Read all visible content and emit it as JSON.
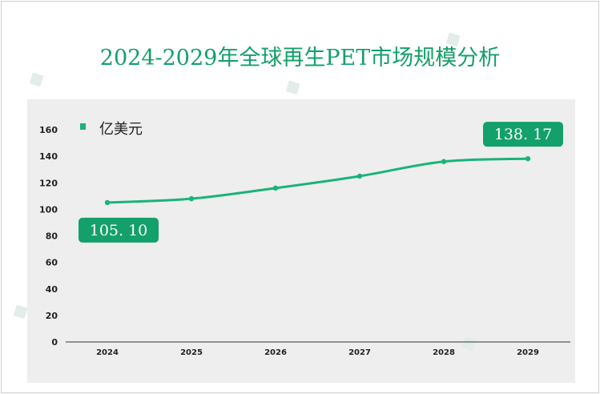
{
  "colors": {
    "accent": "#13a06a",
    "line": "#1ab37a",
    "plot_bg": "#eeeeee",
    "axis": "#333333"
  },
  "chart_data": {
    "type": "line",
    "title": "2024-2029年全球再生PET市场规模分析",
    "xlabel": "",
    "ylabel": "",
    "categories": [
      "2024",
      "2025",
      "2026",
      "2027",
      "2028",
      "2029"
    ],
    "series": [
      {
        "name": "亿美元",
        "values": [
          105.1,
          108.0,
          116.0,
          125.0,
          136.0,
          138.17
        ]
      }
    ],
    "ylim": [
      0,
      160
    ],
    "yticks": [
      0,
      20,
      40,
      60,
      80,
      100,
      120,
      140,
      160
    ],
    "legend": "top-left",
    "annotations": [
      {
        "category": "2024",
        "text": "105. 10"
      },
      {
        "category": "2029",
        "text": "138. 17"
      }
    ],
    "grid": false
  }
}
